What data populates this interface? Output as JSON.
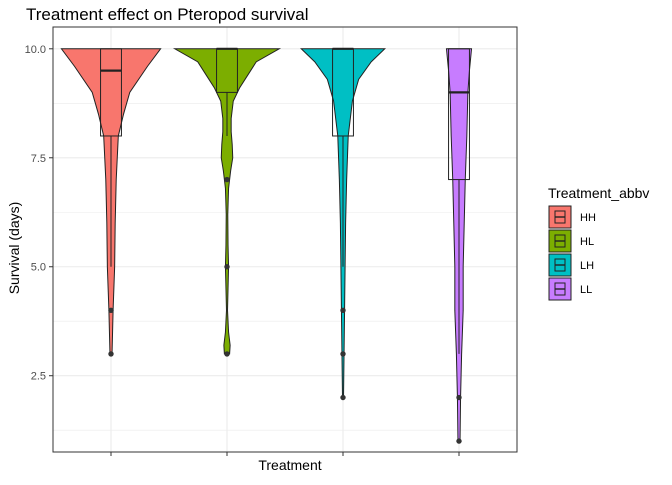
{
  "chart_data": {
    "type": "violin",
    "title": "Treatment effect on Pteropod survival",
    "xlabel": "Treatment",
    "ylabel": "Survival (days)",
    "ylim": [
      0.75,
      10.5
    ],
    "yticks": [
      2.5,
      5.0,
      7.5,
      10.0
    ],
    "ytick_labels": [
      "2.5",
      "5.0",
      "7.5",
      "10.0"
    ],
    "grid": true,
    "legend": {
      "title": "Treatment_abbv",
      "placement": "right",
      "entries": [
        "HH",
        "HL",
        "LH",
        "LL"
      ]
    },
    "series": [
      {
        "name": "HH",
        "color": "#F8766D",
        "box": {
          "q1": 8.0,
          "median": 9.5,
          "q3": 10.0,
          "whisker_low": 5.0,
          "whisker_high": 10.0
        },
        "outliers": [
          4.0,
          3.0
        ],
        "violin": [
          [
            10.0,
            0.95
          ],
          [
            9.6,
            0.7
          ],
          [
            9.0,
            0.36
          ],
          [
            8.5,
            0.24
          ],
          [
            8.0,
            0.14
          ],
          [
            7.0,
            0.1
          ],
          [
            6.0,
            0.08
          ],
          [
            5.0,
            0.07
          ],
          [
            4.0,
            0.04
          ],
          [
            3.0,
            0.02
          ]
        ]
      },
      {
        "name": "HL",
        "color": "#7CAE00",
        "box": {
          "q1": 9.0,
          "median": 10.0,
          "q3": 10.0,
          "whisker_low": 8.0,
          "whisker_high": 10.0
        },
        "outliers": [
          7.0,
          5.0,
          3.0
        ],
        "violin": [
          [
            10.0,
            1.0
          ],
          [
            9.7,
            0.56
          ],
          [
            9.4,
            0.4
          ],
          [
            9.1,
            0.24
          ],
          [
            8.8,
            0.12
          ],
          [
            8.4,
            0.08
          ],
          [
            8.1,
            0.08
          ],
          [
            7.8,
            0.1
          ],
          [
            7.5,
            0.11
          ],
          [
            7.2,
            0.07
          ],
          [
            6.8,
            0.03
          ],
          [
            6.2,
            0.015
          ],
          [
            5.5,
            0.02
          ],
          [
            5.0,
            0.03
          ],
          [
            4.5,
            0.02
          ],
          [
            4.0,
            0.01
          ],
          [
            3.5,
            0.03
          ],
          [
            3.2,
            0.06
          ],
          [
            3.0,
            0.05
          ]
        ]
      },
      {
        "name": "LH",
        "color": "#00BFC4",
        "box": {
          "q1": 8.0,
          "median": 10.0,
          "q3": 10.0,
          "whisker_low": 5.0,
          "whisker_high": 10.0
        },
        "outliers": [
          4.0,
          3.0,
          2.0
        ],
        "violin": [
          [
            10.0,
            0.8
          ],
          [
            9.7,
            0.54
          ],
          [
            9.3,
            0.3
          ],
          [
            8.8,
            0.18
          ],
          [
            8.0,
            0.1
          ],
          [
            7.0,
            0.07
          ],
          [
            6.0,
            0.05
          ],
          [
            5.0,
            0.04
          ],
          [
            4.0,
            0.03
          ],
          [
            3.0,
            0.02
          ],
          [
            2.0,
            0.01
          ]
        ]
      },
      {
        "name": "LL",
        "color": "#C77CFF",
        "box": {
          "q1": 7.0,
          "median": 9.0,
          "q3": 10.0,
          "whisker_low": 3.0,
          "whisker_high": 10.0
        },
        "outliers": [
          2.0,
          1.0
        ],
        "violin": [
          [
            10.0,
            0.24
          ],
          [
            9.5,
            0.2
          ],
          [
            9.0,
            0.17
          ],
          [
            8.0,
            0.15
          ],
          [
            7.0,
            0.12
          ],
          [
            6.0,
            0.1
          ],
          [
            5.0,
            0.08
          ],
          [
            4.0,
            0.08
          ],
          [
            3.0,
            0.05
          ],
          [
            2.0,
            0.03
          ],
          [
            1.0,
            0.02
          ]
        ]
      }
    ]
  }
}
